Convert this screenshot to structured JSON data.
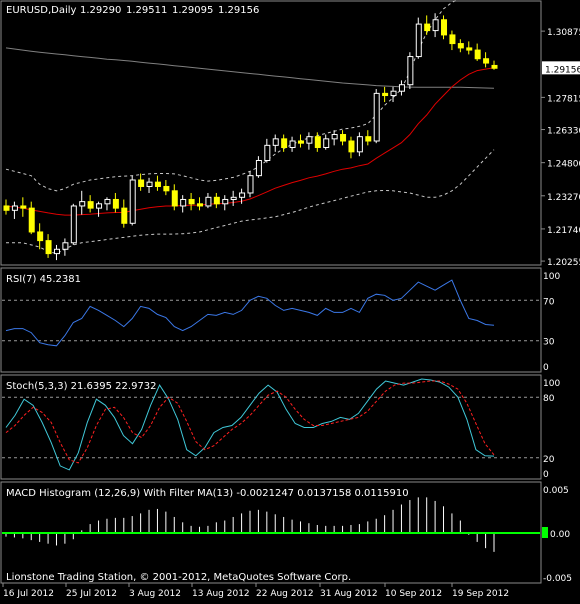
{
  "window": {
    "symbol_header": "EURUSD,Daily",
    "ohlc": [
      "1.29290",
      "1.29511",
      "1.29095",
      "1.29156"
    ],
    "footer": "Lionstone Trading Station, © 2001-2012, MetaQuotes Software Corp."
  },
  "colors": {
    "background": "#000000",
    "grid_line": "#8a8a8a",
    "text": "#ffffff",
    "candle_up": "#ffffff",
    "candle_down": "#ffff00",
    "ma_red": "#e00000",
    "ma_gray": "#808080",
    "bands": "#c8c8c8",
    "rsi_line": "#3b78e8",
    "stoch_main": "#40c8d8",
    "stoch_signal": "#ff2020",
    "macd_bars": "#ffffff",
    "macd_zero": "#00ff00",
    "price_tag_bg": "#ffffff",
    "price_tag_text": "#000000"
  },
  "chart_data": [
    {
      "type": "candlestick",
      "title": "EURUSD,Daily",
      "y_ticks": [
        "1.30875",
        "1.29156",
        "1.27815",
        "1.26330",
        "1.24800",
        "1.23270",
        "1.21740",
        "1.20255"
      ],
      "current_price": "1.29156",
      "ylim": [
        1.2012,
        1.3222
      ],
      "candles": [
        [
          1.228,
          1.231,
          1.224,
          1.226
        ],
        [
          1.226,
          1.23,
          1.222,
          1.228
        ],
        [
          1.228,
          1.232,
          1.223,
          1.227
        ],
        [
          1.227,
          1.23,
          1.215,
          1.216
        ],
        [
          1.216,
          1.22,
          1.208,
          1.212
        ],
        [
          1.212,
          1.215,
          1.204,
          1.206
        ],
        [
          1.206,
          1.21,
          1.203,
          1.208
        ],
        [
          1.208,
          1.213,
          1.205,
          1.211
        ],
        [
          1.211,
          1.229,
          1.21,
          1.228
        ],
        [
          1.228,
          1.235,
          1.224,
          1.23
        ],
        [
          1.23,
          1.233,
          1.225,
          1.227
        ],
        [
          1.227,
          1.23,
          1.223,
          1.229
        ],
        [
          1.229,
          1.232,
          1.226,
          1.231
        ],
        [
          1.231,
          1.234,
          1.225,
          1.227
        ],
        [
          1.227,
          1.231,
          1.218,
          1.22
        ],
        [
          1.22,
          1.242,
          1.219,
          1.24
        ],
        [
          1.24,
          1.243,
          1.235,
          1.237
        ],
        [
          1.237,
          1.241,
          1.234,
          1.239
        ],
        [
          1.239,
          1.242,
          1.235,
          1.237
        ],
        [
          1.237,
          1.24,
          1.233,
          1.235
        ],
        [
          1.235,
          1.238,
          1.226,
          1.228
        ],
        [
          1.228,
          1.233,
          1.225,
          1.231
        ],
        [
          1.231,
          1.234,
          1.226,
          1.229
        ],
        [
          1.229,
          1.232,
          1.226,
          1.228
        ],
        [
          1.228,
          1.234,
          1.227,
          1.232
        ],
        [
          1.232,
          1.234,
          1.227,
          1.229
        ],
        [
          1.229,
          1.233,
          1.226,
          1.231
        ],
        [
          1.231,
          1.235,
          1.228,
          1.232
        ],
        [
          1.232,
          1.236,
          1.229,
          1.234
        ],
        [
          1.234,
          1.244,
          1.232,
          1.242
        ],
        [
          1.242,
          1.251,
          1.241,
          1.249
        ],
        [
          1.249,
          1.259,
          1.248,
          1.256
        ],
        [
          1.256,
          1.261,
          1.253,
          1.259
        ],
        [
          1.259,
          1.261,
          1.253,
          1.255
        ],
        [
          1.255,
          1.26,
          1.253,
          1.258
        ],
        [
          1.258,
          1.261,
          1.255,
          1.257
        ],
        [
          1.257,
          1.262,
          1.254,
          1.26
        ],
        [
          1.26,
          1.262,
          1.253,
          1.255
        ],
        [
          1.255,
          1.261,
          1.254,
          1.259
        ],
        [
          1.259,
          1.263,
          1.256,
          1.261
        ],
        [
          1.261,
          1.263,
          1.256,
          1.258
        ],
        [
          1.258,
          1.26,
          1.25,
          1.253
        ],
        [
          1.253,
          1.262,
          1.251,
          1.26
        ],
        [
          1.26,
          1.263,
          1.256,
          1.258
        ],
        [
          1.258,
          1.282,
          1.257,
          1.28
        ],
        [
          1.28,
          1.283,
          1.276,
          1.279
        ],
        [
          1.279,
          1.283,
          1.276,
          1.281
        ],
        [
          1.281,
          1.286,
          1.279,
          1.284
        ],
        [
          1.284,
          1.299,
          1.282,
          1.297
        ],
        [
          1.297,
          1.315,
          1.296,
          1.312
        ],
        [
          1.312,
          1.316,
          1.307,
          1.309
        ],
        [
          1.309,
          1.317,
          1.306,
          1.314
        ],
        [
          1.314,
          1.316,
          1.305,
          1.307
        ],
        [
          1.307,
          1.309,
          1.3,
          1.303
        ],
        [
          1.303,
          1.305,
          1.299,
          1.301
        ],
        [
          1.301,
          1.304,
          1.298,
          1.3
        ],
        [
          1.3,
          1.303,
          1.295,
          1.296
        ],
        [
          1.296,
          1.299,
          1.292,
          1.294
        ],
        [
          1.2929,
          1.2951,
          1.2909,
          1.2916
        ]
      ],
      "ma_red": [
        1.228,
        1.2275,
        1.227,
        1.2262,
        1.2255,
        1.2248,
        1.2242,
        1.2238,
        1.2238,
        1.224,
        1.2242,
        1.2245,
        1.2248,
        1.225,
        1.225,
        1.2258,
        1.2265,
        1.2272,
        1.2276,
        1.228,
        1.228,
        1.2282,
        1.2283,
        1.2284,
        1.2288,
        1.229,
        1.2292,
        1.2296,
        1.2302,
        1.2312,
        1.2328,
        1.2345,
        1.2362,
        1.2375,
        1.2388,
        1.2398,
        1.241,
        1.2418,
        1.2428,
        1.244,
        1.245,
        1.2456,
        1.2466,
        1.2474,
        1.25,
        1.2524,
        1.2548,
        1.2572,
        1.261,
        1.266,
        1.27,
        1.275,
        1.279,
        1.283,
        1.2862,
        1.2888,
        1.2905,
        1.2912,
        1.2918
      ],
      "ma_gray": [
        1.301,
        1.3005,
        1.3,
        1.2995,
        1.299,
        1.2986,
        1.2982,
        1.2978,
        1.2974,
        1.297,
        1.2966,
        1.2962,
        1.2958,
        1.2955,
        1.2952,
        1.2948,
        1.2944,
        1.294,
        1.2936,
        1.2932,
        1.2928,
        1.2924,
        1.292,
        1.2916,
        1.2912,
        1.2908,
        1.2904,
        1.29,
        1.2896,
        1.2892,
        1.2888,
        1.2884,
        1.288,
        1.2876,
        1.2872,
        1.2868,
        1.2864,
        1.286,
        1.2856,
        1.2852,
        1.2848,
        1.2845,
        1.2842,
        1.2839,
        1.2836,
        1.2834,
        1.2832,
        1.283,
        1.2829,
        1.2828,
        1.2828,
        1.2828,
        1.2828,
        1.2828,
        1.2828,
        1.2827,
        1.2826,
        1.2825,
        1.2824
      ],
      "band_upper": [
        1.245,
        1.244,
        1.243,
        1.242,
        1.238,
        1.236,
        1.235,
        1.236,
        1.238,
        1.239,
        1.24,
        1.2405,
        1.241,
        1.2415,
        1.2418,
        1.242,
        1.2425,
        1.2428,
        1.243,
        1.243,
        1.2428,
        1.242,
        1.241,
        1.24,
        1.2395,
        1.2398,
        1.2405,
        1.2412,
        1.2425,
        1.244,
        1.246,
        1.249,
        1.252,
        1.2545,
        1.2565,
        1.258,
        1.2595,
        1.2605,
        1.2615,
        1.2625,
        1.2635,
        1.264,
        1.2648,
        1.266,
        1.27,
        1.2745,
        1.278,
        1.282,
        1.29,
        1.3,
        1.308,
        1.314,
        1.319,
        1.322,
        1.324,
        1.325,
        1.3255,
        1.3258,
        1.326
      ],
      "band_lower": [
        1.211,
        1.211,
        1.211,
        1.21,
        1.209,
        1.207,
        1.206,
        1.208,
        1.21,
        1.211,
        1.2115,
        1.212,
        1.2125,
        1.213,
        1.2135,
        1.214,
        1.2145,
        1.2148,
        1.215,
        1.215,
        1.215,
        1.2152,
        1.2155,
        1.216,
        1.217,
        1.218,
        1.219,
        1.22,
        1.221,
        1.2215,
        1.222,
        1.2225,
        1.223,
        1.224,
        1.225,
        1.2262,
        1.2275,
        1.2285,
        1.2295,
        1.2305,
        1.2315,
        1.2325,
        1.2335,
        1.2345,
        1.235,
        1.2352,
        1.235,
        1.2345,
        1.234,
        1.233,
        1.232,
        1.232,
        1.233,
        1.235,
        1.238,
        1.242,
        1.246,
        1.25,
        1.254
      ]
    },
    {
      "type": "line",
      "title": "RSI(7) 45.2381",
      "y_ticks": [
        "100",
        "70",
        "30",
        "0"
      ],
      "ylim": [
        0,
        100
      ],
      "levels": [
        70,
        30
      ],
      "values": [
        40,
        42,
        42,
        38,
        28,
        26,
        25,
        35,
        48,
        52,
        64,
        60,
        55,
        50,
        44,
        52,
        64,
        62,
        56,
        53,
        44,
        40,
        44,
        50,
        56,
        55,
        58,
        56,
        60,
        70,
        74,
        72,
        65,
        60,
        62,
        60,
        58,
        55,
        62,
        58,
        58,
        62,
        58,
        72,
        76,
        75,
        70,
        72,
        80,
        88,
        84,
        80,
        85,
        90,
        70,
        52,
        50,
        46,
        45.2381
      ]
    },
    {
      "type": "line",
      "title": "Stoch(5,3,3) 21.6395 22.9732",
      "y_ticks": [
        "100",
        "80",
        "20",
        "0"
      ],
      "ylim": [
        0,
        100
      ],
      "levels": [
        80,
        20
      ],
      "series": [
        {
          "values": [
            50,
            62,
            78,
            72,
            55,
            35,
            12,
            8,
            25,
            55,
            78,
            72,
            60,
            42,
            34,
            48,
            72,
            92,
            78,
            58,
            28,
            22,
            30,
            45,
            50,
            52,
            60,
            72,
            84,
            92,
            85,
            68,
            54,
            50,
            50,
            54,
            56,
            60,
            58,
            64,
            76,
            88,
            96,
            94,
            92,
            95,
            98,
            97,
            95,
            90,
            80,
            58,
            28,
            22,
            21.6395
          ]
        },
        {
          "values": [
            45,
            52,
            62,
            70,
            65,
            55,
            35,
            18,
            15,
            30,
            52,
            68,
            70,
            60,
            45,
            40,
            52,
            70,
            80,
            74,
            56,
            36,
            28,
            32,
            40,
            48,
            54,
            62,
            72,
            82,
            86,
            80,
            68,
            58,
            52,
            52,
            54,
            56,
            58,
            60,
            66,
            76,
            86,
            92,
            94,
            94,
            95,
            96,
            96,
            93,
            88,
            74,
            54,
            34,
            22.9732
          ]
        }
      ]
    },
    {
      "type": "bar",
      "title": "MACD Histogram (12,26,9) With Filter MA(13) -0.0021247 0.0137158 0.0115910",
      "y_ticks": [
        "0.005",
        "0.00",
        "-0.005"
      ],
      "ylim": [
        -0.0055,
        0.0055
      ],
      "values": [
        -0.0004,
        -0.0005,
        -0.0006,
        -0.0008,
        -0.001,
        -0.0012,
        -0.0014,
        -0.0012,
        -0.0007,
        0.0003,
        0.001,
        0.0014,
        0.0016,
        0.0017,
        0.0017,
        0.0019,
        0.0022,
        0.0026,
        0.0027,
        0.0024,
        0.0018,
        0.0012,
        0.0008,
        0.0007,
        0.0008,
        0.0012,
        0.0014,
        0.0018,
        0.0022,
        0.0025,
        0.0026,
        0.0024,
        0.0021,
        0.0018,
        0.0015,
        0.0013,
        0.0011,
        0.0009,
        0.0008,
        0.0008,
        0.0008,
        0.0009,
        0.001,
        0.0013,
        0.0016,
        0.002,
        0.0026,
        0.0032,
        0.0037,
        0.004,
        0.004,
        0.0036,
        0.003,
        0.0022,
        0.0014,
        -0.0002,
        -0.001,
        -0.0017,
        -0.0021247
      ],
      "filter_ma": [
        0.0,
        0.0,
        0.0,
        0.0,
        0.0,
        0.0,
        0.0,
        0.0,
        0.0,
        0.0,
        0.0,
        0.0,
        0.0,
        0.0,
        0.0,
        0.0,
        0.0,
        0.0,
        0.0,
        0.0,
        0.0,
        0.0,
        0.0,
        0.0,
        0.0,
        0.0,
        0.0,
        0.0,
        0.0,
        0.0,
        0.0,
        0.0,
        0.0,
        0.0,
        0.0,
        0.0,
        0.0,
        0.0,
        0.0,
        0.0,
        0.0,
        0.0,
        0.0,
        0.0,
        0.0,
        0.0,
        0.0,
        0.0,
        0.0,
        0.0,
        0.0,
        0.0,
        0.0,
        0.0,
        0.0,
        0.0,
        0.0,
        0.0,
        0.0
      ]
    }
  ],
  "x_axis": {
    "labels": [
      "16 Jul 2012",
      "25 Jul 2012",
      "3 Aug 2012",
      "13 Aug 2012",
      "22 Aug 2012",
      "31 Aug 2012",
      "10 Sep 2012",
      "19 Sep 2012"
    ]
  }
}
